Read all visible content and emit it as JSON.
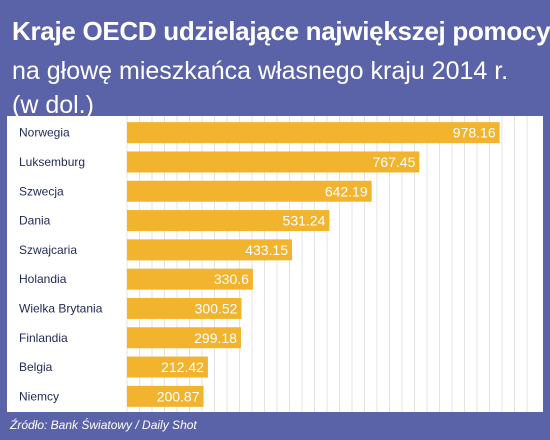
{
  "title": "Kraje OECD udzielające największej pomocy",
  "subtitle_line1": "na głowę mieszkańca własnego kraju 2014 r.",
  "subtitle_line2": "(w dol.)",
  "source": "Źródło: Bank Światowy / Daily Shot",
  "colors": {
    "background": "#5b63a8",
    "panel": "#ffffff",
    "bar": "#f2b42e",
    "bar_text": "#ffffff",
    "label_text": "#1f2a55",
    "grid": "#e3e3e3"
  },
  "chart_data": {
    "type": "bar",
    "orientation": "horizontal",
    "categories": [
      "Norwegia",
      "Luksemburg",
      "Szwecja",
      "Dania",
      "Szwajcaria",
      "Holandia",
      "Wielka Brytania",
      "Finlandia",
      "Belgia",
      "Niemcy"
    ],
    "values": [
      978.16,
      767.45,
      642.19,
      531.24,
      433.15,
      330.6,
      300.52,
      299.18,
      212.42,
      200.87
    ],
    "value_labels": [
      "978.16",
      "767.45",
      "642.19",
      "531.24",
      "433.15",
      "330.6",
      "300.52",
      "299.18",
      "212.42",
      "200.87"
    ],
    "xlim": [
      0,
      1050
    ],
    "grid": true
  }
}
